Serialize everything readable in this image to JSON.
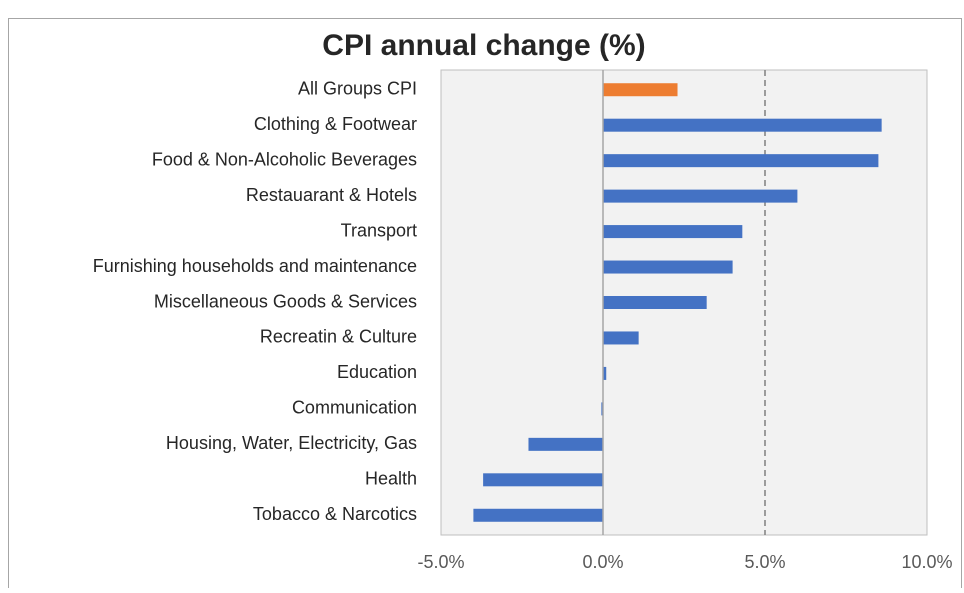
{
  "chart_data": {
    "type": "bar",
    "orientation": "horizontal",
    "title": "CPI annual change (%)",
    "categories": [
      "All Groups CPI",
      "Clothing & Footwear",
      "Food & Non-Alcoholic Beverages",
      "Restauarant & Hotels",
      "Transport",
      "Furnishing households and maintenance",
      "Miscellaneous Goods & Services",
      "Recreatin & Culture",
      "Education",
      "Communication",
      "Housing, Water, Electricity, Gas",
      "Health",
      "Tobacco & Narcotics"
    ],
    "values": [
      2.3,
      8.6,
      8.5,
      6.0,
      4.3,
      4.0,
      3.2,
      1.1,
      0.1,
      -0.05,
      -2.3,
      -3.7,
      -4.0
    ],
    "colors": [
      "#ed7d31",
      "#4472c4",
      "#4472c4",
      "#4472c4",
      "#4472c4",
      "#4472c4",
      "#4472c4",
      "#4472c4",
      "#4472c4",
      "#4472c4",
      "#4472c4",
      "#4472c4",
      "#4472c4"
    ],
    "xlim": [
      -5,
      10
    ],
    "xticks": [
      {
        "value": -5,
        "label": "-5.0%"
      },
      {
        "value": 0,
        "label": "0.0%"
      },
      {
        "value": 5,
        "label": "5.0%"
      },
      {
        "value": 10,
        "label": "10.0%"
      }
    ],
    "grid": true
  }
}
